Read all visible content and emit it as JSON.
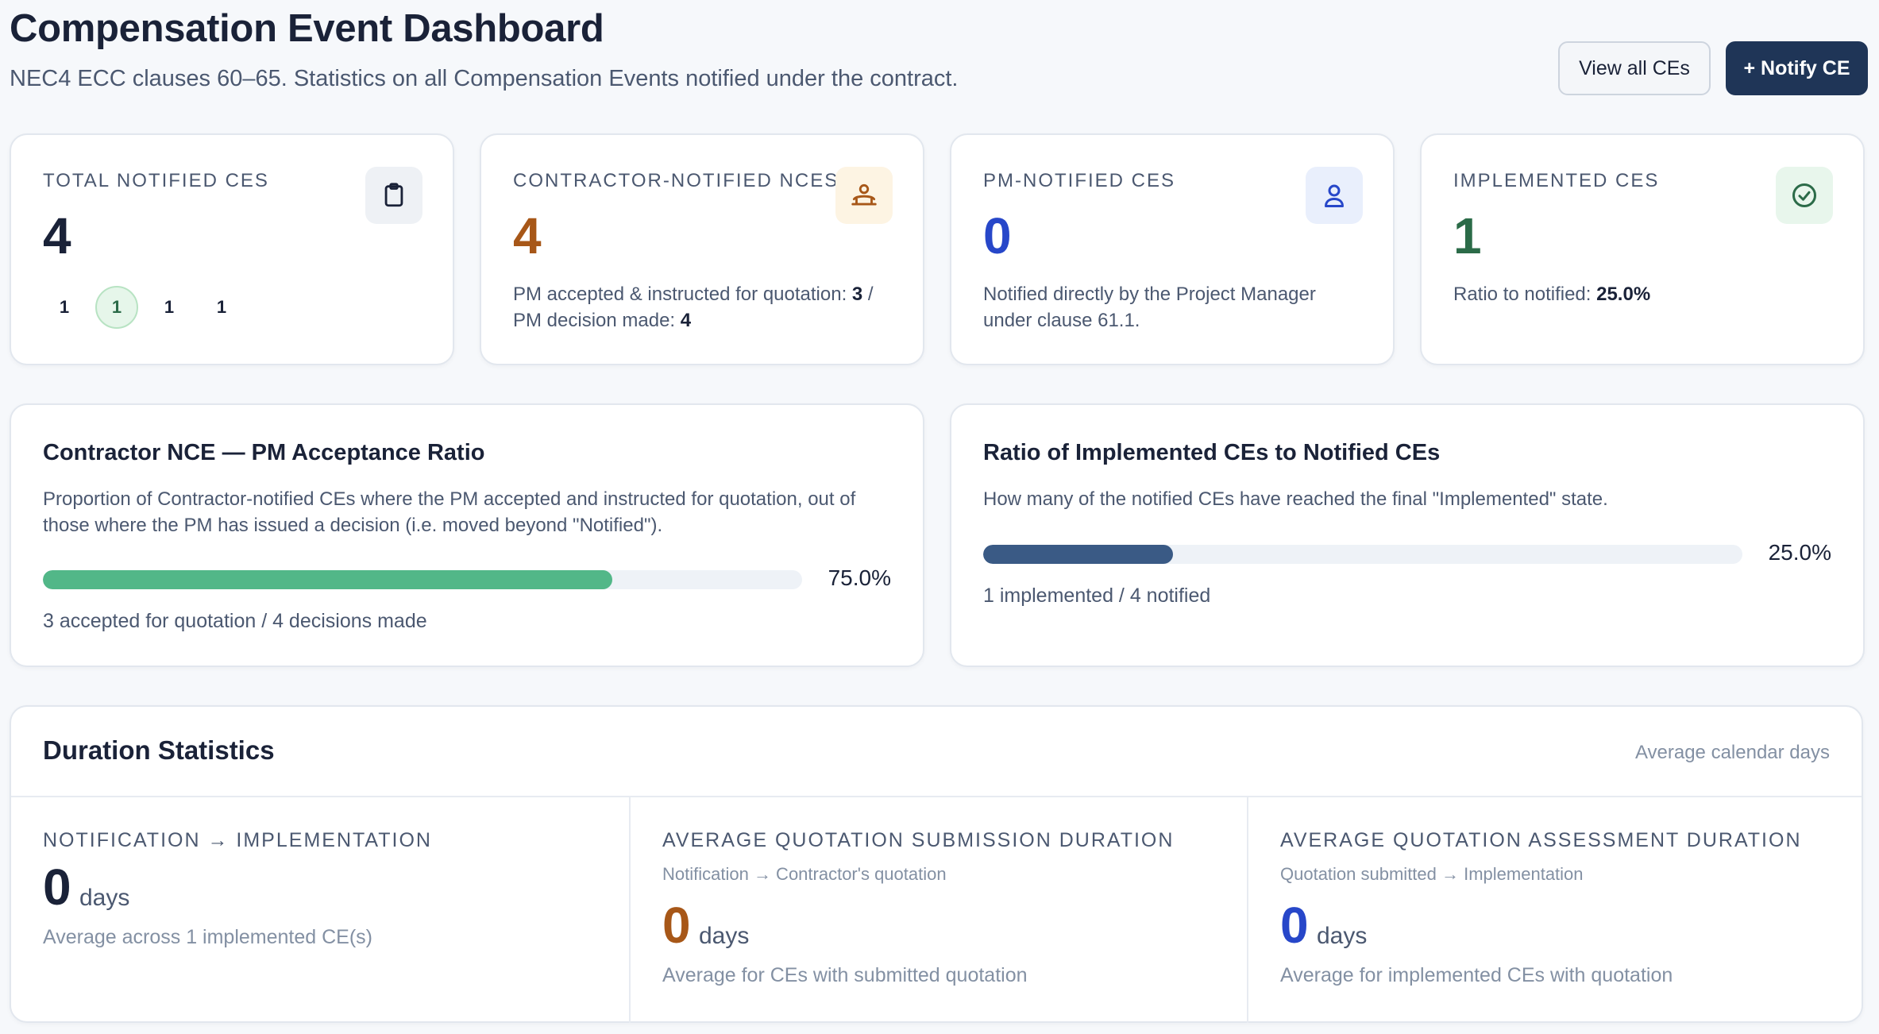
{
  "header": {
    "title": "Compensation Event Dashboard",
    "subtitle": "NEC4 ECC clauses 60–65. Statistics on all Compensation Events notified under the contract.",
    "view_all_label": "View all CEs",
    "notify_label": "+ Notify CE"
  },
  "stats": [
    {
      "label": "Total Notified CEs",
      "value": "4",
      "icon": "clipboard-icon",
      "chips": [
        "1",
        "1",
        "1",
        "1"
      ],
      "active_chip_index": 1
    },
    {
      "label": "Contractor-Notified NCEs",
      "value": "4",
      "icon": "contractor-icon",
      "desc_prefix": "PM accepted & instructed for quotation: ",
      "desc_accepted": "3",
      "desc_middle": " / PM decision made: ",
      "desc_decisions": "4"
    },
    {
      "label": "PM-Notified CEs",
      "value": "0",
      "icon": "user-icon",
      "desc": "Notified directly by the Project Manager under clause 61.1."
    },
    {
      "label": "Implemented CEs",
      "value": "1",
      "icon": "check-circle-icon",
      "desc_prefix": "Ratio to notified: ",
      "desc_ratio": "25.0%"
    }
  ],
  "acceptance": {
    "title": "Contractor NCE — PM Acceptance Ratio",
    "text": "Proportion of Contractor-notified CEs where the PM accepted and instructed for quotation, out of those where the PM has issued a decision (i.e. moved beyond \"Notified\").",
    "percent_label": "75.0%",
    "fraction": 0.75,
    "foot": "3 accepted for quotation / 4 decisions made",
    "bar_color": "#52b788"
  },
  "implemented": {
    "title": "Ratio of Implemented CEs to Notified CEs",
    "text": "How many of the notified CEs have reached the final \"Implemented\" state.",
    "percent_label": "25.0%",
    "fraction": 0.25,
    "foot": "1 implemented / 4 notified",
    "bar_color": "#3a5a85"
  },
  "duration": {
    "title": "Duration Statistics",
    "note": "Average calendar days",
    "columns": [
      {
        "label": "Notification → Implementation",
        "sub": "",
        "value": "0",
        "unit": "days",
        "foot": "Average across 1 implemented CE(s)"
      },
      {
        "label": "Average Quotation Submission Duration",
        "sub": "Notification → Contractor's quotation",
        "value": "0",
        "unit": "days",
        "foot": "Average for CEs with submitted quotation"
      },
      {
        "label": "Average Quotation Assessment Duration",
        "sub": "Quotation submitted → Implementation",
        "value": "0",
        "unit": "days",
        "foot": "Average for implemented CEs with quotation"
      }
    ]
  },
  "colors": {
    "primary": "#1f3557",
    "orange": "#a75718",
    "blue": "#2747c9",
    "green": "#2b6b48"
  }
}
